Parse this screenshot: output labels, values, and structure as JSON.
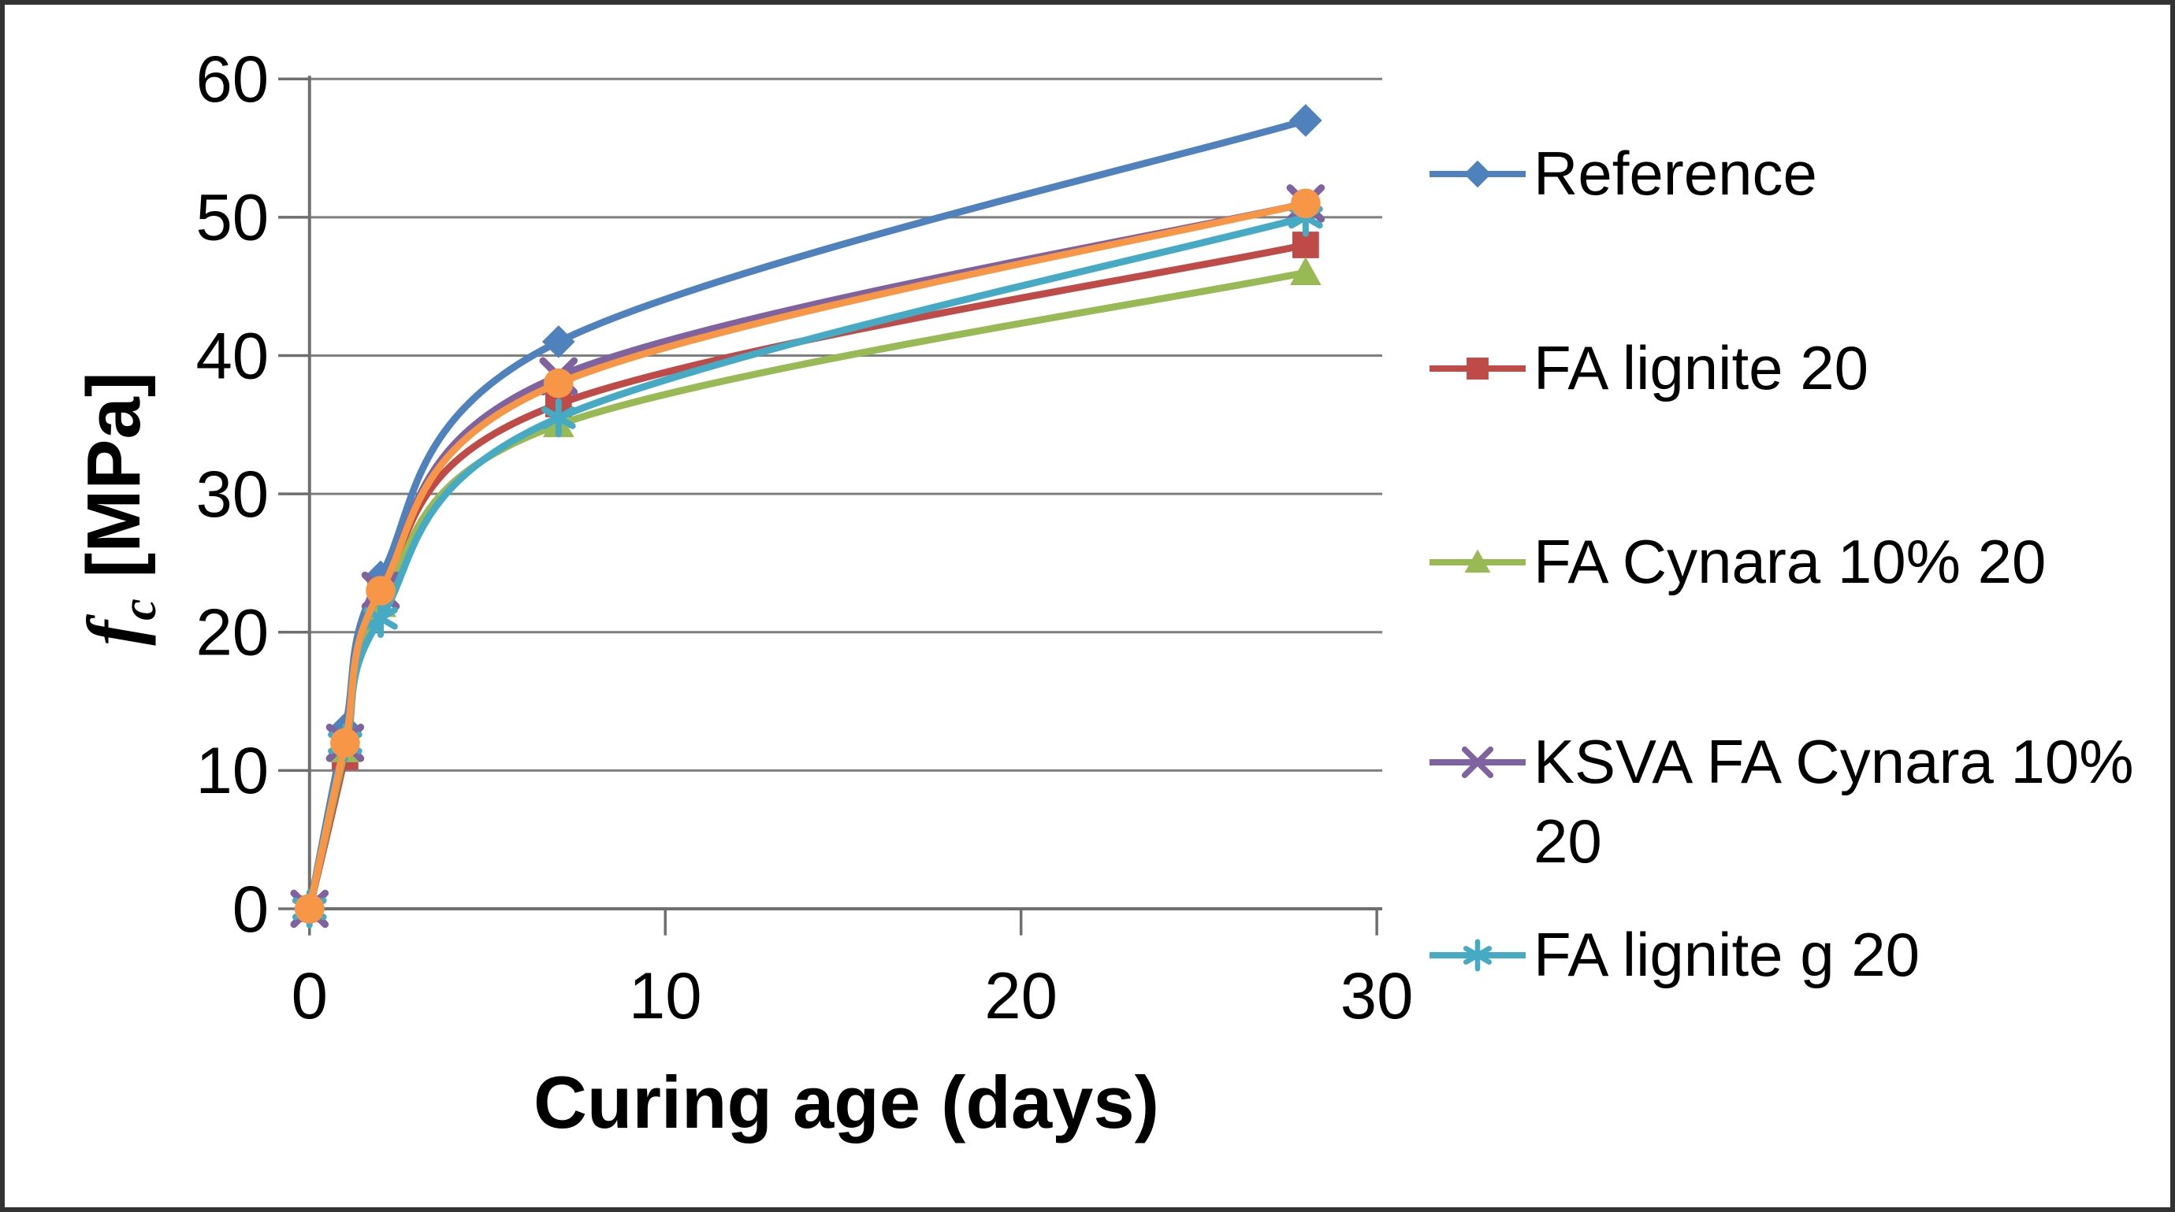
{
  "figure": {
    "background": "#ffffff",
    "border_color": "#333333",
    "text_color": "#000000",
    "grid_color": "#7f7f7f",
    "axis_color": "#6e6e6e"
  },
  "chart_data": {
    "type": "line",
    "title": "",
    "xlabel": "Curing age (days)",
    "ylabel": "fc [MPa]",
    "ylabel_parts": {
      "symbol": "f",
      "subscript": "c",
      "unit": "[MPa]"
    },
    "xlim": [
      0,
      30
    ],
    "ylim": [
      0,
      60
    ],
    "x_ticks": [
      0,
      10,
      20,
      30
    ],
    "y_ticks": [
      0,
      10,
      20,
      30,
      40,
      50,
      60
    ],
    "grid": "horizontal",
    "line_style": "smooth",
    "legend_position": "right",
    "x": [
      0,
      1,
      2,
      7,
      28
    ],
    "series": [
      {
        "name": "Reference",
        "color": "#4F81BD",
        "marker": "diamond",
        "values": [
          0,
          13,
          24,
          41,
          57
        ]
      },
      {
        "name": "FA lignite 20",
        "color": "#BE4B48",
        "marker": "square",
        "values": [
          0,
          11,
          23,
          36.5,
          48
        ]
      },
      {
        "name": "FA  Cynara 10% 20",
        "color": "#98B954",
        "marker": "triangle",
        "values": [
          0,
          11.5,
          22,
          35,
          46
        ]
      },
      {
        "name": "KSVA FA  Cynara 10% 20",
        "color": "#7F63A1",
        "marker": "x",
        "values": [
          0,
          12,
          23,
          38.5,
          51
        ]
      },
      {
        "name": "FA lignite g 20",
        "color": "#46AAC5",
        "marker": "asterisk",
        "values": [
          0,
          12,
          21,
          35.5,
          50
        ]
      },
      {
        "name": "",
        "color": "#F79646",
        "marker": "circle",
        "values": [
          0,
          12,
          23,
          38,
          51
        ]
      }
    ]
  },
  "legend": {
    "items": [
      {
        "label": "Reference",
        "series_index": 0
      },
      {
        "label": "FA lignite 20",
        "series_index": 1
      },
      {
        "label": "FA  Cynara 10% 20",
        "series_index": 2
      },
      {
        "label": "KSVA FA  Cynara 10% 20",
        "series_index": 3
      },
      {
        "label": "FA lignite g 20",
        "series_index": 4
      }
    ]
  }
}
